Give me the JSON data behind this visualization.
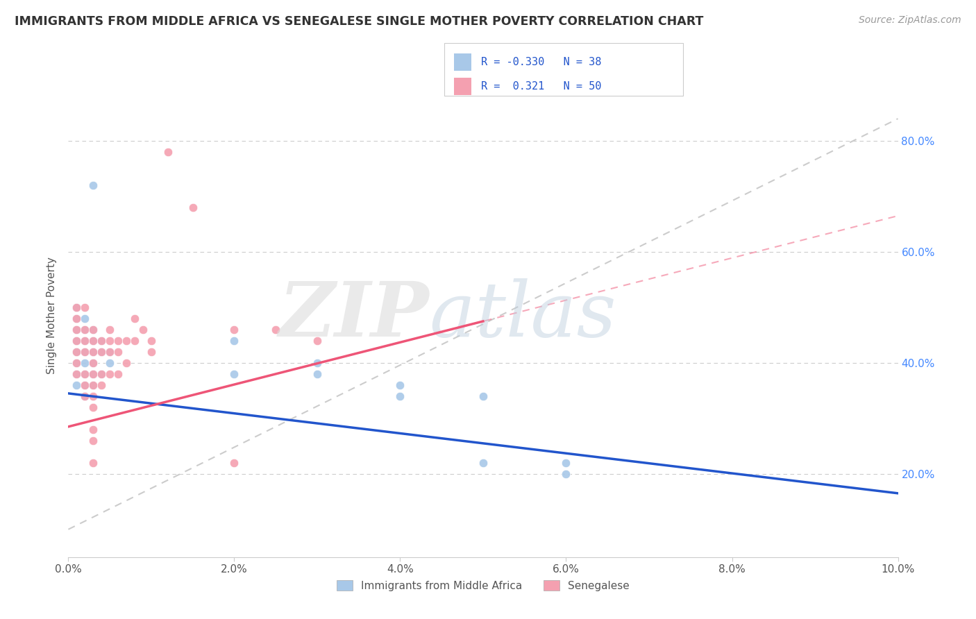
{
  "title": "IMMIGRANTS FROM MIDDLE AFRICA VS SENEGALESE SINGLE MOTHER POVERTY CORRELATION CHART",
  "source": "Source: ZipAtlas.com",
  "ylabel": "Single Mother Poverty",
  "xlim": [
    0.0,
    0.1
  ],
  "ylim": [
    0.05,
    0.92
  ],
  "xtick_labels": [
    "0.0%",
    "2.0%",
    "4.0%",
    "6.0%",
    "8.0%",
    "10.0%"
  ],
  "xtick_vals": [
    0.0,
    0.02,
    0.04,
    0.06,
    0.08,
    0.1
  ],
  "ytick_vals": [
    0.2,
    0.4,
    0.6,
    0.8
  ],
  "ytick_labels": [
    "20.0%",
    "40.0%",
    "60.0%",
    "80.0%"
  ],
  "blue_color": "#A8C8E8",
  "pink_color": "#F4A0B0",
  "blue_line_color": "#2255CC",
  "pink_line_color": "#EE5577",
  "grid_color": "#CCCCCC",
  "watermark_zip_color": "#DDDDDD",
  "watermark_atlas_color": "#BBCCE8",
  "blue_scatter": [
    [
      0.001,
      0.5
    ],
    [
      0.001,
      0.48
    ],
    [
      0.001,
      0.46
    ],
    [
      0.001,
      0.44
    ],
    [
      0.001,
      0.42
    ],
    [
      0.001,
      0.4
    ],
    [
      0.001,
      0.38
    ],
    [
      0.001,
      0.36
    ],
    [
      0.002,
      0.48
    ],
    [
      0.002,
      0.46
    ],
    [
      0.002,
      0.44
    ],
    [
      0.002,
      0.42
    ],
    [
      0.002,
      0.4
    ],
    [
      0.002,
      0.38
    ],
    [
      0.002,
      0.36
    ],
    [
      0.002,
      0.34
    ],
    [
      0.003,
      0.46
    ],
    [
      0.003,
      0.44
    ],
    [
      0.003,
      0.42
    ],
    [
      0.003,
      0.4
    ],
    [
      0.003,
      0.38
    ],
    [
      0.003,
      0.36
    ],
    [
      0.003,
      0.72
    ],
    [
      0.004,
      0.44
    ],
    [
      0.004,
      0.42
    ],
    [
      0.004,
      0.38
    ],
    [
      0.005,
      0.42
    ],
    [
      0.005,
      0.4
    ],
    [
      0.02,
      0.44
    ],
    [
      0.02,
      0.38
    ],
    [
      0.03,
      0.4
    ],
    [
      0.03,
      0.38
    ],
    [
      0.04,
      0.36
    ],
    [
      0.04,
      0.34
    ],
    [
      0.05,
      0.34
    ],
    [
      0.05,
      0.22
    ],
    [
      0.06,
      0.22
    ],
    [
      0.06,
      0.2
    ]
  ],
  "pink_scatter": [
    [
      0.001,
      0.5
    ],
    [
      0.001,
      0.48
    ],
    [
      0.001,
      0.46
    ],
    [
      0.001,
      0.44
    ],
    [
      0.001,
      0.42
    ],
    [
      0.001,
      0.4
    ],
    [
      0.001,
      0.38
    ],
    [
      0.002,
      0.5
    ],
    [
      0.002,
      0.46
    ],
    [
      0.002,
      0.44
    ],
    [
      0.002,
      0.42
    ],
    [
      0.002,
      0.38
    ],
    [
      0.002,
      0.36
    ],
    [
      0.002,
      0.34
    ],
    [
      0.003,
      0.46
    ],
    [
      0.003,
      0.44
    ],
    [
      0.003,
      0.42
    ],
    [
      0.003,
      0.4
    ],
    [
      0.003,
      0.38
    ],
    [
      0.003,
      0.36
    ],
    [
      0.003,
      0.34
    ],
    [
      0.003,
      0.32
    ],
    [
      0.003,
      0.28
    ],
    [
      0.003,
      0.26
    ],
    [
      0.003,
      0.22
    ],
    [
      0.004,
      0.44
    ],
    [
      0.004,
      0.42
    ],
    [
      0.004,
      0.38
    ],
    [
      0.004,
      0.36
    ],
    [
      0.005,
      0.46
    ],
    [
      0.005,
      0.44
    ],
    [
      0.005,
      0.42
    ],
    [
      0.005,
      0.38
    ],
    [
      0.006,
      0.44
    ],
    [
      0.006,
      0.42
    ],
    [
      0.006,
      0.38
    ],
    [
      0.007,
      0.44
    ],
    [
      0.007,
      0.4
    ],
    [
      0.008,
      0.48
    ],
    [
      0.008,
      0.44
    ],
    [
      0.009,
      0.46
    ],
    [
      0.01,
      0.44
    ],
    [
      0.01,
      0.42
    ],
    [
      0.012,
      0.78
    ],
    [
      0.015,
      0.68
    ],
    [
      0.02,
      0.46
    ],
    [
      0.02,
      0.22
    ],
    [
      0.025,
      0.46
    ],
    [
      0.03,
      0.44
    ]
  ],
  "blue_line": {
    "x0": 0.0,
    "y0": 0.345,
    "x1": 0.1,
    "y1": 0.165
  },
  "pink_line": {
    "x0": 0.0,
    "y0": 0.285,
    "x1": 0.05,
    "y1": 0.475
  },
  "pink_dash_line": {
    "x0": 0.0,
    "y0": 0.285,
    "x1": 0.1,
    "y1": 0.665
  },
  "gray_dash_line": {
    "x0": 0.0,
    "y0": 0.1,
    "x1": 0.1,
    "y1": 0.84
  }
}
